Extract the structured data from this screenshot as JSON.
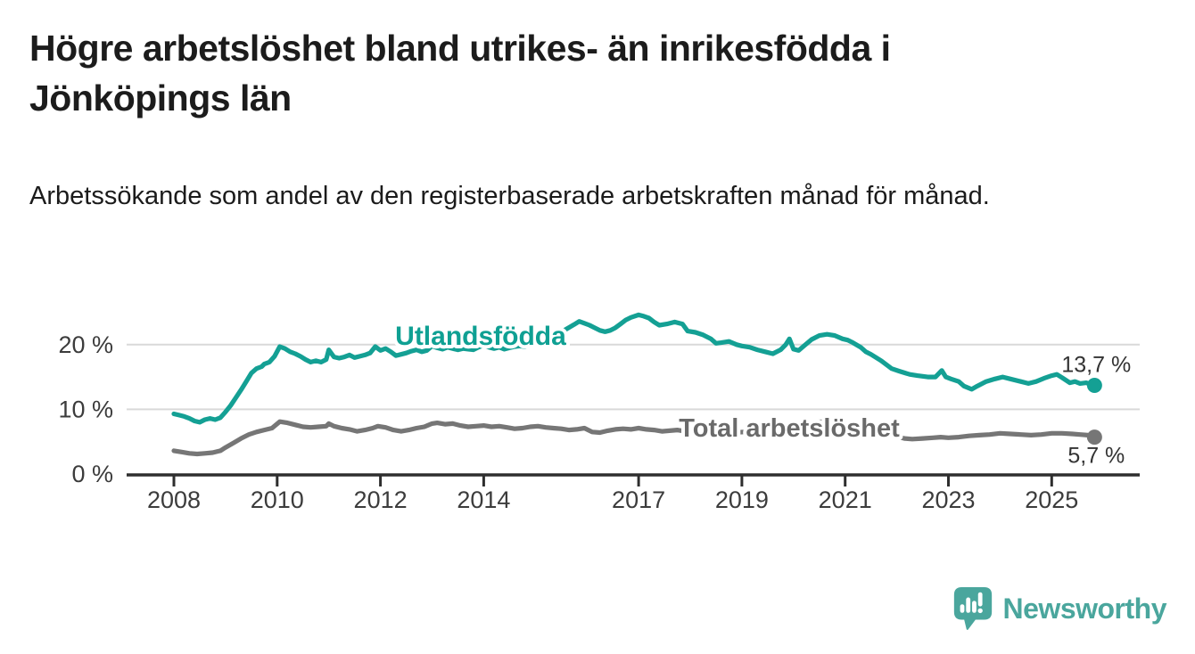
{
  "header": {
    "title": "Högre arbetslöshet bland utrikes- än inrikesfödda i Jönköpings län",
    "subtitle": "Arbetssökande som andel av den registerbaserade arbetskraften månad för månad."
  },
  "chart_data": {
    "type": "line",
    "title": "Högre arbetslöshet bland utrikes- än inrikesfödda i Jönköpings län",
    "subtitle": "Arbetssökande som andel av den registerbaserade arbetskraften månad för månad.",
    "x_axis": {
      "ticks": [
        2008,
        2010,
        2012,
        2014,
        2017,
        2019,
        2021,
        2023,
        2025
      ],
      "range": [
        2007.1,
        2026.7
      ]
    },
    "y_axis": {
      "ticks": [
        {
          "value": 0,
          "label": "0 %"
        },
        {
          "value": 10,
          "label": "10 %"
        },
        {
          "value": 20,
          "label": "20 %"
        }
      ],
      "range": [
        0,
        26
      ],
      "gridlines": [
        10,
        20
      ]
    },
    "legend_position": "inline-labels",
    "colors": {
      "foreign_born": "#14a094",
      "total": "#767676",
      "axis": "#2e2e2e",
      "gridline": "#d9d9d9",
      "text": "#333333"
    },
    "series": [
      {
        "name": "Utlandsfödda",
        "color": "#14a094",
        "label_color": "#0fa093",
        "end_label": "13,7 %",
        "end_value": 13.7,
        "points": [
          [
            2008.0,
            9.3
          ],
          [
            2008.1,
            9.1
          ],
          [
            2008.2,
            8.9
          ],
          [
            2008.3,
            8.6
          ],
          [
            2008.4,
            8.2
          ],
          [
            2008.5,
            8.0
          ],
          [
            2008.6,
            8.4
          ],
          [
            2008.7,
            8.6
          ],
          [
            2008.8,
            8.4
          ],
          [
            2008.9,
            8.7
          ],
          [
            2009.0,
            9.6
          ],
          [
            2009.1,
            10.6
          ],
          [
            2009.2,
            11.8
          ],
          [
            2009.3,
            13.0
          ],
          [
            2009.4,
            14.3
          ],
          [
            2009.5,
            15.6
          ],
          [
            2009.6,
            16.3
          ],
          [
            2009.7,
            16.6
          ],
          [
            2009.75,
            17.0
          ],
          [
            2009.85,
            17.3
          ],
          [
            2009.95,
            18.2
          ],
          [
            2010.05,
            19.7
          ],
          [
            2010.15,
            19.4
          ],
          [
            2010.25,
            18.9
          ],
          [
            2010.35,
            18.6
          ],
          [
            2010.45,
            18.2
          ],
          [
            2010.55,
            17.7
          ],
          [
            2010.65,
            17.3
          ],
          [
            2010.75,
            17.5
          ],
          [
            2010.85,
            17.3
          ],
          [
            2010.95,
            17.7
          ],
          [
            2011.0,
            19.2
          ],
          [
            2011.1,
            18.1
          ],
          [
            2011.2,
            17.9
          ],
          [
            2011.3,
            18.1
          ],
          [
            2011.4,
            18.4
          ],
          [
            2011.5,
            18.0
          ],
          [
            2011.6,
            18.2
          ],
          [
            2011.7,
            18.4
          ],
          [
            2011.8,
            18.7
          ],
          [
            2011.9,
            19.7
          ],
          [
            2012.0,
            19.1
          ],
          [
            2012.1,
            19.4
          ],
          [
            2012.2,
            18.9
          ],
          [
            2012.3,
            18.3
          ],
          [
            2012.4,
            18.5
          ],
          [
            2012.5,
            18.7
          ],
          [
            2012.6,
            19.0
          ],
          [
            2012.7,
            19.2
          ],
          [
            2012.8,
            18.9
          ],
          [
            2012.9,
            19.1
          ],
          [
            2013.0,
            19.8
          ],
          [
            2013.1,
            19.5
          ],
          [
            2013.2,
            19.3
          ],
          [
            2013.3,
            19.6
          ],
          [
            2013.4,
            19.4
          ],
          [
            2013.5,
            19.2
          ],
          [
            2013.6,
            19.4
          ],
          [
            2013.7,
            19.3
          ],
          [
            2013.8,
            19.2
          ],
          [
            2013.9,
            19.6
          ],
          [
            2014.0,
            19.9
          ],
          [
            2014.1,
            19.6
          ],
          [
            2014.2,
            19.4
          ],
          [
            2014.3,
            19.6
          ],
          [
            2014.4,
            19.3
          ],
          [
            2014.5,
            19.5
          ],
          [
            2014.6,
            19.7
          ],
          [
            2014.7,
            19.8
          ],
          [
            2014.8,
            19.7
          ],
          [
            2014.9,
            20.0
          ],
          [
            2015.0,
            20.6
          ],
          [
            2015.15,
            20.9
          ],
          [
            2015.3,
            21.2
          ],
          [
            2015.45,
            21.7
          ],
          [
            2015.6,
            22.4
          ],
          [
            2015.75,
            23.1
          ],
          [
            2015.85,
            23.6
          ],
          [
            2015.95,
            23.3
          ],
          [
            2016.05,
            23.0
          ],
          [
            2016.15,
            22.6
          ],
          [
            2016.25,
            22.2
          ],
          [
            2016.35,
            22.0
          ],
          [
            2016.45,
            22.2
          ],
          [
            2016.55,
            22.6
          ],
          [
            2016.65,
            23.2
          ],
          [
            2016.75,
            23.8
          ],
          [
            2016.85,
            24.2
          ],
          [
            2017.0,
            24.6
          ],
          [
            2017.1,
            24.4
          ],
          [
            2017.2,
            24.1
          ],
          [
            2017.3,
            23.5
          ],
          [
            2017.4,
            23.0
          ],
          [
            2017.55,
            23.2
          ],
          [
            2017.7,
            23.5
          ],
          [
            2017.85,
            23.2
          ],
          [
            2017.95,
            22.1
          ],
          [
            2018.1,
            21.9
          ],
          [
            2018.25,
            21.5
          ],
          [
            2018.4,
            20.9
          ],
          [
            2018.5,
            20.2
          ],
          [
            2018.6,
            20.3
          ],
          [
            2018.75,
            20.5
          ],
          [
            2018.9,
            20.0
          ],
          [
            2019.0,
            19.8
          ],
          [
            2019.15,
            19.6
          ],
          [
            2019.3,
            19.2
          ],
          [
            2019.45,
            18.9
          ],
          [
            2019.6,
            18.6
          ],
          [
            2019.75,
            19.2
          ],
          [
            2019.85,
            20.0
          ],
          [
            2019.92,
            20.9
          ],
          [
            2020.0,
            19.3
          ],
          [
            2020.1,
            19.1
          ],
          [
            2020.2,
            19.8
          ],
          [
            2020.35,
            20.8
          ],
          [
            2020.5,
            21.4
          ],
          [
            2020.65,
            21.6
          ],
          [
            2020.8,
            21.4
          ],
          [
            2020.95,
            20.9
          ],
          [
            2021.05,
            20.7
          ],
          [
            2021.15,
            20.3
          ],
          [
            2021.3,
            19.6
          ],
          [
            2021.4,
            18.9
          ],
          [
            2021.5,
            18.5
          ],
          [
            2021.6,
            18.0
          ],
          [
            2021.7,
            17.5
          ],
          [
            2021.8,
            16.9
          ],
          [
            2021.9,
            16.3
          ],
          [
            2022.05,
            15.9
          ],
          [
            2022.25,
            15.4
          ],
          [
            2022.4,
            15.2
          ],
          [
            2022.6,
            15.0
          ],
          [
            2022.75,
            15.0
          ],
          [
            2022.87,
            16.0
          ],
          [
            2022.95,
            15.0
          ],
          [
            2023.05,
            14.7
          ],
          [
            2023.2,
            14.3
          ],
          [
            2023.3,
            13.6
          ],
          [
            2023.45,
            13.1
          ],
          [
            2023.56,
            13.6
          ],
          [
            2023.73,
            14.3
          ],
          [
            2023.9,
            14.7
          ],
          [
            2024.05,
            15.0
          ],
          [
            2024.2,
            14.7
          ],
          [
            2024.4,
            14.3
          ],
          [
            2024.55,
            14.0
          ],
          [
            2024.7,
            14.3
          ],
          [
            2024.85,
            14.8
          ],
          [
            2025.0,
            15.2
          ],
          [
            2025.1,
            15.4
          ],
          [
            2025.2,
            14.9
          ],
          [
            2025.35,
            14.1
          ],
          [
            2025.45,
            14.3
          ],
          [
            2025.55,
            14.0
          ],
          [
            2025.67,
            14.1
          ],
          [
            2025.83,
            13.7
          ]
        ]
      },
      {
        "name": "Total arbetslöshet",
        "color": "#767676",
        "label_color": "#6a6a6a",
        "end_label": "5,7 %",
        "end_value": 5.7,
        "points": [
          [
            2008.0,
            3.6
          ],
          [
            2008.15,
            3.4
          ],
          [
            2008.3,
            3.2
          ],
          [
            2008.45,
            3.1
          ],
          [
            2008.6,
            3.2
          ],
          [
            2008.75,
            3.3
          ],
          [
            2008.9,
            3.6
          ],
          [
            2009.0,
            4.1
          ],
          [
            2009.15,
            4.8
          ],
          [
            2009.3,
            5.5
          ],
          [
            2009.45,
            6.1
          ],
          [
            2009.6,
            6.5
          ],
          [
            2009.75,
            6.8
          ],
          [
            2009.9,
            7.1
          ],
          [
            2010.05,
            8.1
          ],
          [
            2010.2,
            7.9
          ],
          [
            2010.35,
            7.6
          ],
          [
            2010.5,
            7.3
          ],
          [
            2010.65,
            7.2
          ],
          [
            2010.8,
            7.3
          ],
          [
            2010.95,
            7.4
          ],
          [
            2011.0,
            7.8
          ],
          [
            2011.1,
            7.4
          ],
          [
            2011.25,
            7.1
          ],
          [
            2011.4,
            6.9
          ],
          [
            2011.55,
            6.6
          ],
          [
            2011.7,
            6.8
          ],
          [
            2011.85,
            7.1
          ],
          [
            2011.95,
            7.4
          ],
          [
            2012.1,
            7.2
          ],
          [
            2012.25,
            6.8
          ],
          [
            2012.4,
            6.6
          ],
          [
            2012.55,
            6.8
          ],
          [
            2012.7,
            7.1
          ],
          [
            2012.85,
            7.3
          ],
          [
            2013.0,
            7.8
          ],
          [
            2013.1,
            7.9
          ],
          [
            2013.25,
            7.7
          ],
          [
            2013.4,
            7.8
          ],
          [
            2013.55,
            7.5
          ],
          [
            2013.7,
            7.3
          ],
          [
            2013.85,
            7.4
          ],
          [
            2014.0,
            7.5
          ],
          [
            2014.15,
            7.3
          ],
          [
            2014.3,
            7.4
          ],
          [
            2014.45,
            7.2
          ],
          [
            2014.6,
            7.0
          ],
          [
            2014.75,
            7.1
          ],
          [
            2014.9,
            7.3
          ],
          [
            2015.05,
            7.4
          ],
          [
            2015.2,
            7.2
          ],
          [
            2015.35,
            7.1
          ],
          [
            2015.5,
            7.0
          ],
          [
            2015.65,
            6.8
          ],
          [
            2015.8,
            6.9
          ],
          [
            2015.95,
            7.1
          ],
          [
            2016.1,
            6.5
          ],
          [
            2016.25,
            6.4
          ],
          [
            2016.4,
            6.7
          ],
          [
            2016.55,
            6.9
          ],
          [
            2016.7,
            7.0
          ],
          [
            2016.85,
            6.9
          ],
          [
            2017.0,
            7.1
          ],
          [
            2017.15,
            6.9
          ],
          [
            2017.3,
            6.8
          ],
          [
            2017.45,
            6.6
          ],
          [
            2017.6,
            6.7
          ],
          [
            2017.75,
            6.8
          ],
          [
            2017.9,
            6.6
          ],
          [
            2018.05,
            6.7
          ],
          [
            2018.3,
            6.5
          ],
          [
            2018.55,
            6.3
          ],
          [
            2018.8,
            6.4
          ],
          [
            2019.05,
            6.5
          ],
          [
            2019.3,
            6.3
          ],
          [
            2019.55,
            6.2
          ],
          [
            2019.8,
            6.5
          ],
          [
            2020.0,
            6.6
          ],
          [
            2020.2,
            7.5
          ],
          [
            2020.4,
            8.0
          ],
          [
            2020.6,
            8.1
          ],
          [
            2020.8,
            7.9
          ],
          [
            2021.0,
            7.7
          ],
          [
            2021.2,
            7.3
          ],
          [
            2021.4,
            6.9
          ],
          [
            2021.6,
            6.6
          ],
          [
            2021.8,
            6.2
          ],
          [
            2022.0,
            5.8
          ],
          [
            2022.15,
            5.5
          ],
          [
            2022.3,
            5.4
          ],
          [
            2022.5,
            5.5
          ],
          [
            2022.7,
            5.6
          ],
          [
            2022.85,
            5.7
          ],
          [
            2023.0,
            5.6
          ],
          [
            2023.2,
            5.7
          ],
          [
            2023.4,
            5.9
          ],
          [
            2023.6,
            6.0
          ],
          [
            2023.8,
            6.1
          ],
          [
            2024.0,
            6.3
          ],
          [
            2024.2,
            6.2
          ],
          [
            2024.4,
            6.1
          ],
          [
            2024.6,
            6.0
          ],
          [
            2024.8,
            6.1
          ],
          [
            2025.0,
            6.3
          ],
          [
            2025.2,
            6.3
          ],
          [
            2025.4,
            6.2
          ],
          [
            2025.55,
            6.1
          ],
          [
            2025.7,
            6.0
          ],
          [
            2025.83,
            5.7
          ]
        ]
      }
    ]
  },
  "branding": {
    "logo_icon": "newsworthy-speech-bubble-bar-chart-icon",
    "logo_text": "Newsworthy",
    "logo_color": "#4aa69d"
  }
}
